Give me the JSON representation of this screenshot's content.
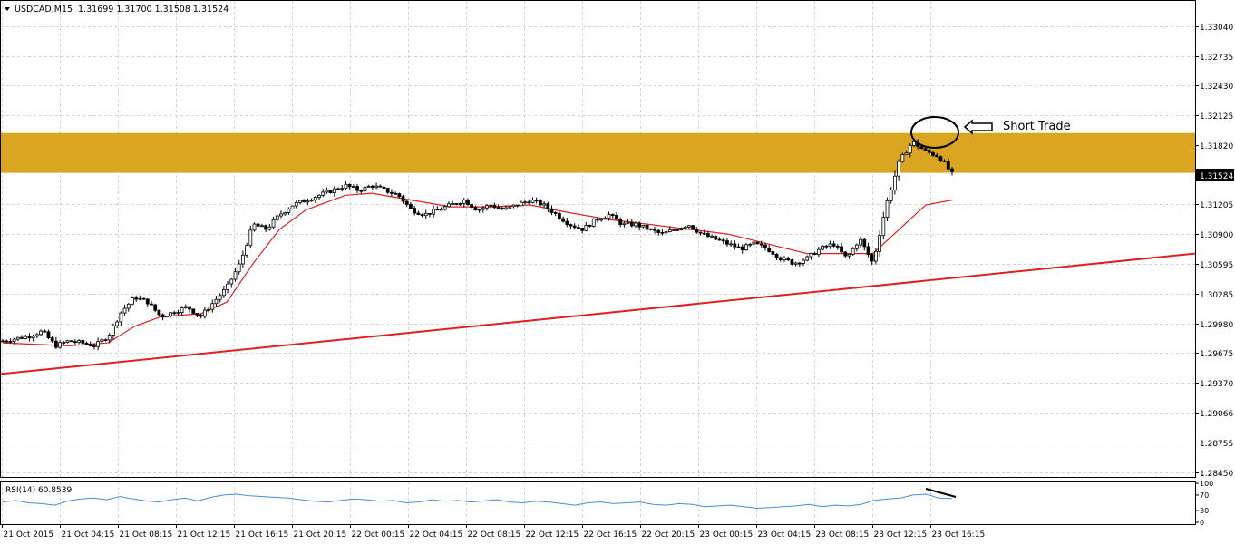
{
  "header": {
    "symbol_label": "USDCAD,M15",
    "ohlc_label": "1.31699 1.31700 1.31508 1.31524"
  },
  "current_price": "1.31524",
  "annotation": {
    "text": "Short Trade"
  },
  "colors": {
    "grid": "#d4d4d4",
    "border": "#000000",
    "zone": "#daa520",
    "trendline": "#e02020",
    "moving_average": "#e02020",
    "candle": "#000000",
    "rsi_line": "#4a8cd8"
  },
  "chart_data": [
    {
      "type": "candlestick",
      "symbol": "USDCAD",
      "timeframe": "M15",
      "ylim": [
        1.284,
        1.333
      ],
      "y_ticks": [
        "1.33040",
        "1.32735",
        "1.32430",
        "1.32125",
        "1.31820",
        "1.31524",
        "1.31205",
        "1.30900",
        "1.30595",
        "1.30285",
        "1.29980",
        "1.29675",
        "1.29370",
        "1.29066",
        "1.28755",
        "1.28450"
      ],
      "x_ticks": [
        "21 Oct 2015",
        "21 Oct 04:15",
        "21 Oct 08:15",
        "21 Oct 12:15",
        "21 Oct 16:15",
        "21 Oct 20:15",
        "22 Oct 00:15",
        "22 Oct 04:15",
        "22 Oct 08:15",
        "22 Oct 12:15",
        "22 Oct 16:15",
        "22 Oct 20:15",
        "23 Oct 00:15",
        "23 Oct 04:15",
        "23 Oct 08:15",
        "23 Oct 12:15",
        "23 Oct 16:15"
      ],
      "zone": {
        "low": 1.3153,
        "high": 1.3194
      },
      "trendline": {
        "start": 1.2946,
        "end": 1.307
      },
      "close_path": [
        [
          0,
          1.298
        ],
        [
          2,
          1.2985
        ],
        [
          3,
          1.299
        ],
        [
          4,
          1.2975
        ],
        [
          5,
          1.298
        ],
        [
          6,
          1.2978
        ],
        [
          7,
          1.2975
        ],
        [
          8,
          1.2985
        ],
        [
          9,
          1.301
        ],
        [
          10,
          1.3025
        ],
        [
          11,
          1.302
        ],
        [
          12,
          1.3005
        ],
        [
          13,
          1.301
        ],
        [
          14,
          1.3015
        ],
        [
          15,
          1.3005
        ],
        [
          16,
          1.302
        ],
        [
          17,
          1.3035
        ],
        [
          18,
          1.306
        ],
        [
          19,
          1.31
        ],
        [
          20,
          1.3095
        ],
        [
          21,
          1.311
        ],
        [
          22,
          1.312
        ],
        [
          23,
          1.3125
        ],
        [
          24,
          1.313
        ],
        [
          25,
          1.3135
        ],
        [
          26,
          1.314
        ],
        [
          27,
          1.3135
        ],
        [
          28,
          1.314
        ],
        [
          29,
          1.3135
        ],
        [
          30,
          1.313
        ],
        [
          31,
          1.3115
        ],
        [
          32,
          1.311
        ],
        [
          33,
          1.3115
        ],
        [
          34,
          1.312
        ],
        [
          35,
          1.3125
        ],
        [
          36,
          1.3115
        ],
        [
          37,
          1.312
        ],
        [
          38,
          1.3115
        ],
        [
          39,
          1.312
        ],
        [
          40,
          1.3125
        ],
        [
          41,
          1.312
        ],
        [
          42,
          1.311
        ],
        [
          43,
          1.31
        ],
        [
          44,
          1.3095
        ],
        [
          45,
          1.3105
        ],
        [
          46,
          1.311
        ],
        [
          47,
          1.31
        ],
        [
          48,
          1.31
        ],
        [
          49,
          1.3095
        ],
        [
          50,
          1.309
        ],
        [
          51,
          1.3095
        ],
        [
          52,
          1.31
        ],
        [
          53,
          1.309
        ],
        [
          54,
          1.3085
        ],
        [
          55,
          1.308
        ],
        [
          56,
          1.3075
        ],
        [
          57,
          1.308
        ],
        [
          58,
          1.3075
        ],
        [
          59,
          1.3065
        ],
        [
          60,
          1.306
        ],
        [
          61,
          1.3065
        ],
        [
          62,
          1.3075
        ],
        [
          63,
          1.308
        ],
        [
          64,
          1.3065
        ],
        [
          65,
          1.3085
        ],
        [
          66,
          1.306
        ],
        [
          67,
          1.312
        ],
        [
          68,
          1.3165
        ],
        [
          69,
          1.3185
        ],
        [
          70,
          1.3175
        ],
        [
          71,
          1.317
        ],
        [
          72,
          1.3152
        ]
      ],
      "ma_path": [
        [
          0,
          1.2978
        ],
        [
          5,
          1.2975
        ],
        [
          8,
          1.2978
        ],
        [
          10,
          1.2995
        ],
        [
          12,
          1.3005
        ],
        [
          15,
          1.3008
        ],
        [
          17,
          1.302
        ],
        [
          19,
          1.306
        ],
        [
          21,
          1.3095
        ],
        [
          23,
          1.3115
        ],
        [
          26,
          1.313
        ],
        [
          28,
          1.3132
        ],
        [
          31,
          1.3125
        ],
        [
          34,
          1.3118
        ],
        [
          37,
          1.3118
        ],
        [
          40,
          1.312
        ],
        [
          43,
          1.3112
        ],
        [
          46,
          1.3105
        ],
        [
          49,
          1.31
        ],
        [
          52,
          1.3095
        ],
        [
          55,
          1.309
        ],
        [
          58,
          1.308
        ],
        [
          61,
          1.307
        ],
        [
          64,
          1.307
        ],
        [
          66,
          1.307
        ],
        [
          68,
          1.3095
        ],
        [
          70,
          1.312
        ],
        [
          72,
          1.3125
        ]
      ]
    },
    {
      "type": "line",
      "indicator": "RSI(14)",
      "label": "RSI(14) 60.8539",
      "ylim": [
        0,
        100
      ],
      "y_ticks": [
        "100",
        "70",
        "30",
        "0"
      ],
      "values": [
        52,
        56,
        50,
        48,
        44,
        55,
        60,
        62,
        58,
        66,
        60,
        55,
        52,
        58,
        62,
        55,
        64,
        70,
        72,
        68,
        66,
        64,
        62,
        58,
        54,
        52,
        56,
        60,
        58,
        54,
        56,
        50,
        52,
        58,
        54,
        56,
        52,
        55,
        58,
        52,
        50,
        54,
        52,
        48,
        44,
        50,
        52,
        48,
        50,
        52,
        46,
        44,
        48,
        46,
        40,
        42,
        44,
        40,
        36,
        38,
        40,
        42,
        46,
        40,
        44,
        42,
        46,
        56,
        60,
        62,
        70,
        72,
        62,
        61
      ]
    }
  ]
}
